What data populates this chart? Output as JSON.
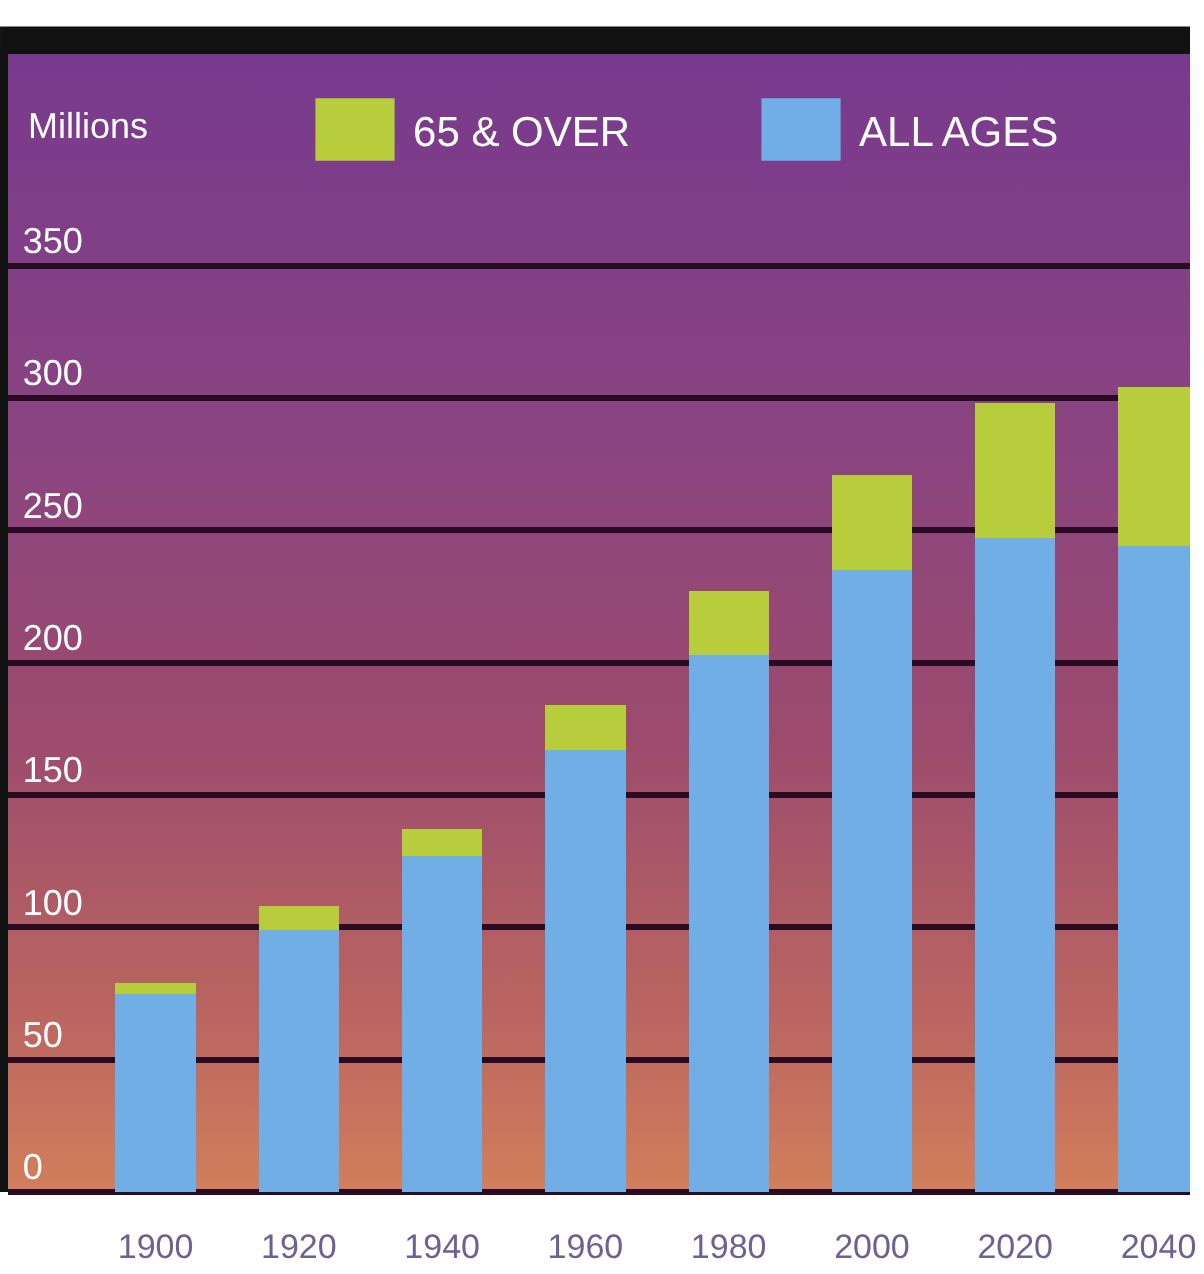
{
  "chart_data": {
    "type": "bar",
    "stacked": true,
    "ylabel": "Millions",
    "categories": [
      "1900",
      "1920",
      "1940",
      "1960",
      "1980",
      "2000",
      "2020",
      "2040"
    ],
    "series": [
      {
        "name": "ALL AGES",
        "color": "#72aee6",
        "values": [
          75,
          99,
          127,
          167,
          203,
          235,
          247,
          244
        ]
      },
      {
        "name": "65 & OVER",
        "color": "#b8cd3c",
        "values": [
          4,
          9,
          10,
          17,
          24,
          36,
          51,
          60
        ]
      }
    ],
    "ylim": [
      0,
      430
    ],
    "yticks": [
      0,
      50,
      100,
      150,
      200,
      250,
      300,
      350
    ],
    "grid": "y",
    "legend": "top"
  }
}
